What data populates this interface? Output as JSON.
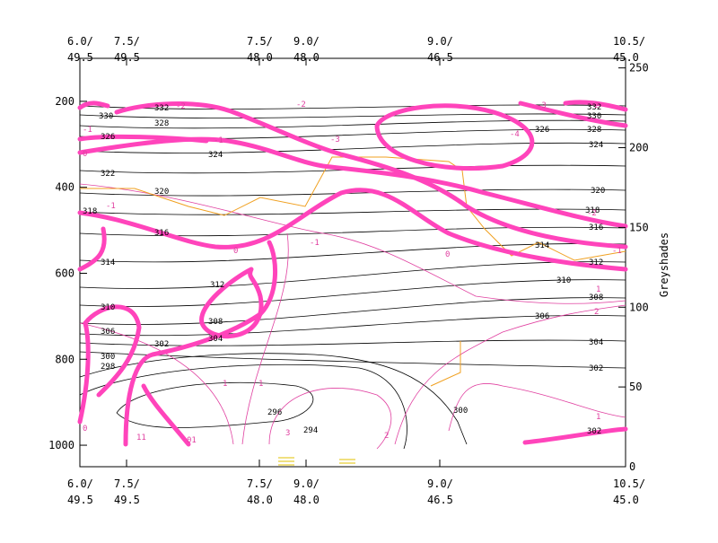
{
  "top_axis": [
    [
      "6.0/",
      "49.5"
    ],
    [
      "7.5/",
      "49.5"
    ],
    [
      "7.5/",
      "48.0"
    ],
    [
      "9.0/",
      "48.0"
    ],
    [
      "9.0/",
      "46.5"
    ],
    [
      "10.5/",
      "45.0"
    ]
  ],
  "bottom_axis": [
    [
      "6.0/",
      "49.5"
    ],
    [
      "7.5/",
      "49.5"
    ],
    [
      "7.5/",
      "48.0"
    ],
    [
      "9.0/",
      "48.0"
    ],
    [
      "9.0/",
      "46.5"
    ],
    [
      "10.5/",
      "45.0"
    ]
  ],
  "left_axis": {
    "lim": [
      1050,
      100
    ],
    "ticks": [
      200,
      400,
      600,
      800,
      1000
    ]
  },
  "right_axis": {
    "label": "Greyshades",
    "lim": [
      0,
      256
    ],
    "ticks": [
      0,
      50,
      100,
      150,
      200,
      250
    ]
  },
  "contour_labels": [
    "332",
    "330",
    "328",
    "326",
    "324",
    "322",
    "320",
    "318",
    "316",
    "314",
    "312",
    "310",
    "308",
    "306",
    "304",
    "302",
    "300",
    "298",
    "296",
    "294",
    "332",
    "330",
    "328",
    "326",
    "324",
    "320",
    "318",
    "316",
    "314",
    "312",
    "310",
    "308",
    "306",
    "304",
    "302",
    "300",
    "302"
  ],
  "pink_labels": [
    "-2",
    "-1",
    "0",
    "-1",
    "-2",
    "-1",
    "-3",
    "-4",
    "-3",
    "-2",
    "-1",
    "0",
    "0",
    "-1",
    "1",
    "2",
    "1",
    "1",
    "2",
    "3",
    "1",
    "2",
    "0",
    "11",
    "01"
  ]
}
